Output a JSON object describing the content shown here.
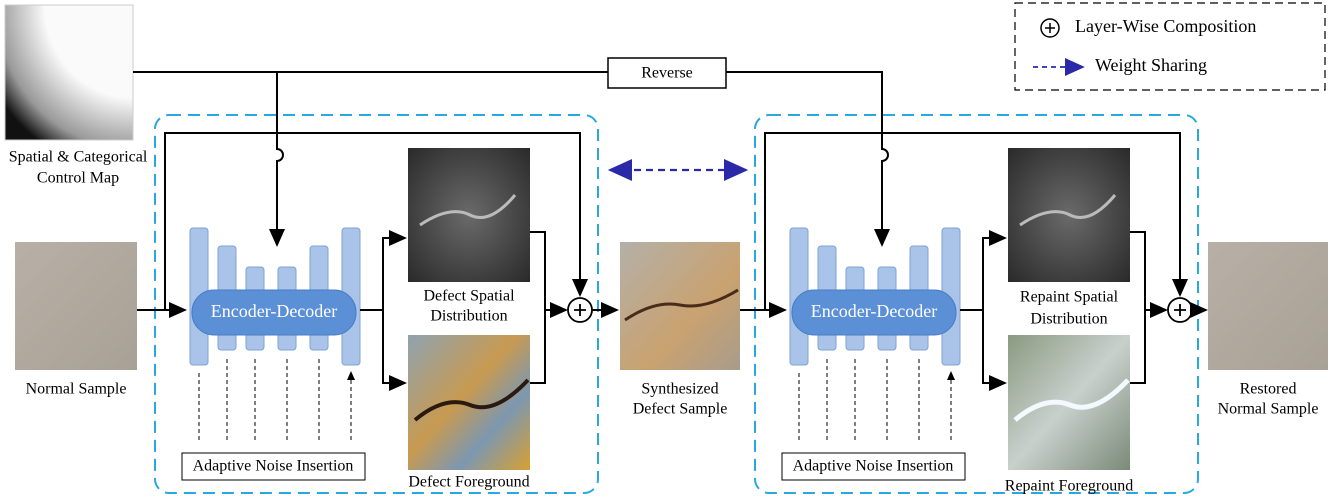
{
  "legend": {
    "composition": "Layer-Wise Composition",
    "weight_sharing": "Weight Sharing"
  },
  "control_map": {
    "label": [
      "Spatial & Categorical",
      "Control Map"
    ]
  },
  "reverse": "Reverse",
  "normal_sample": "Normal Sample",
  "synthesis": {
    "encoder_decoder": "Encoder-Decoder",
    "noise": "Adaptive Noise Insertion",
    "spatial": [
      "Defect Spatial",
      "Distribution"
    ],
    "foreground": "Defect Foreground"
  },
  "synthesized_sample": [
    "Synthesized",
    "Defect Sample"
  ],
  "repaint": {
    "encoder_decoder": "Encoder-Decoder",
    "noise": "Adaptive Noise Insertion",
    "spatial": [
      "Repaint Spatial",
      "Distribution"
    ],
    "foreground": "Repaint Foreground"
  },
  "restored_sample": [
    "Restored",
    "Normal Sample"
  ]
}
